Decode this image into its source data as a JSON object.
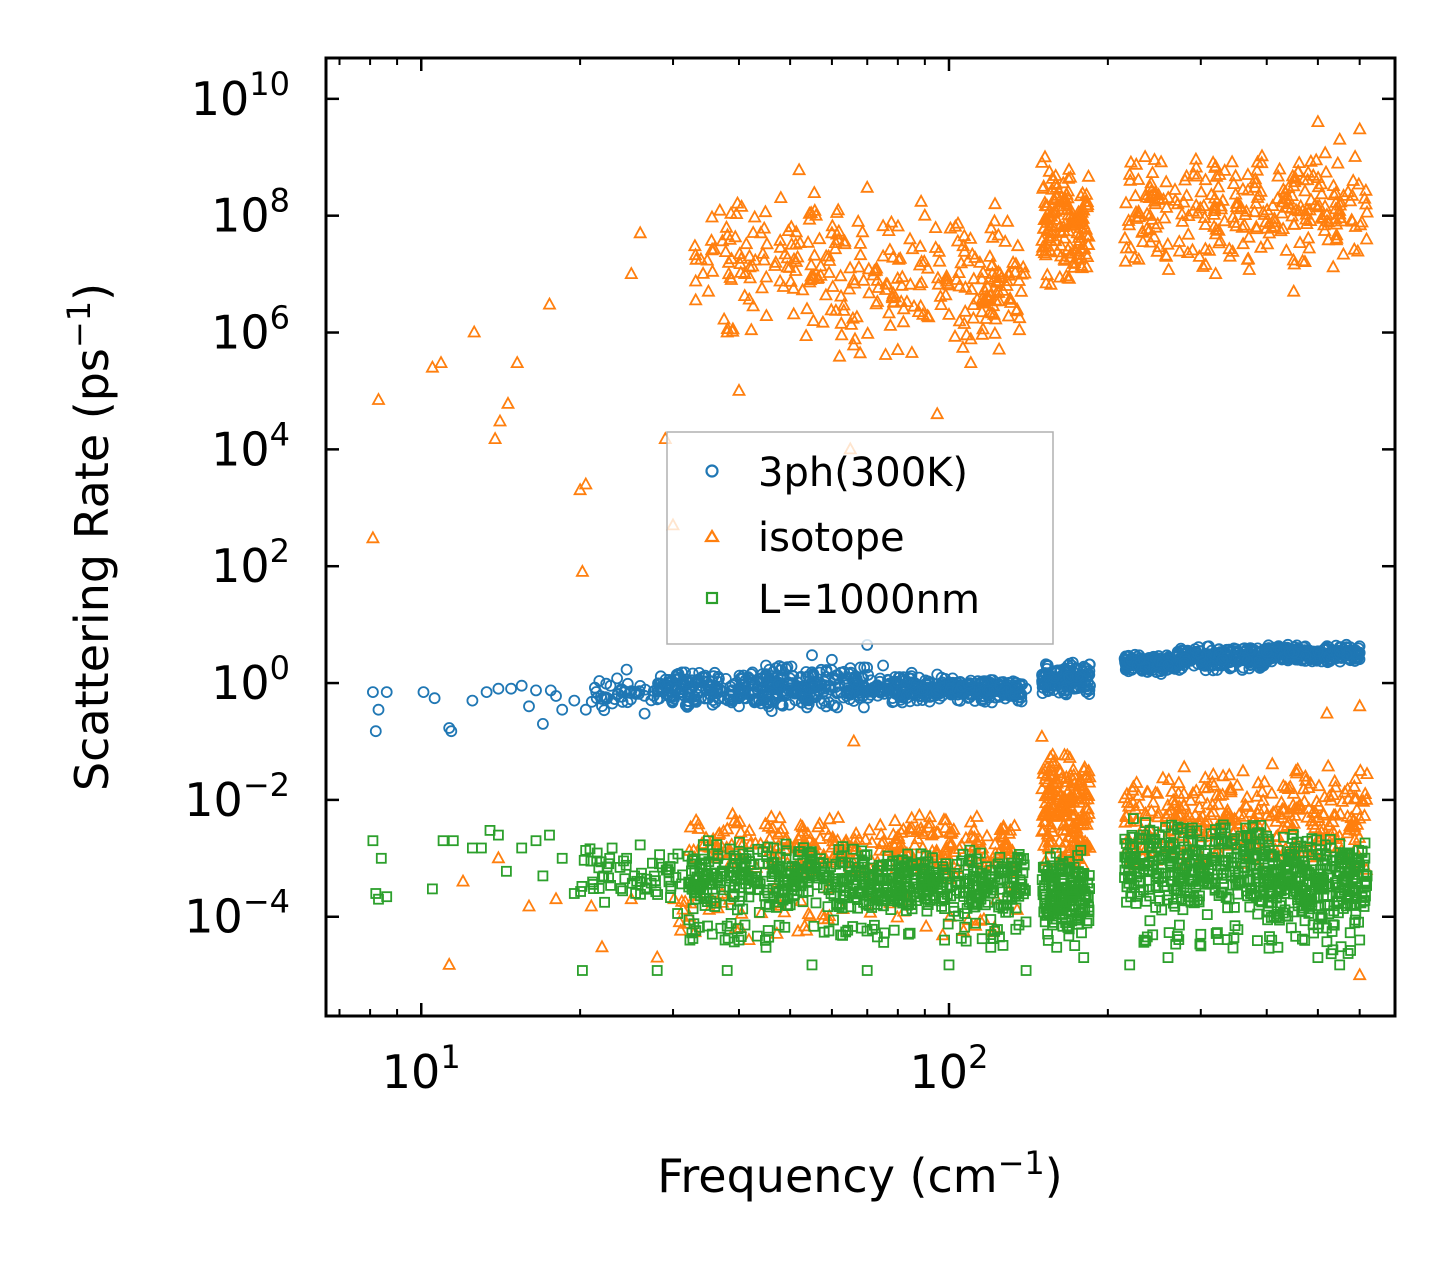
{
  "chart_data": {
    "type": "scatter",
    "title": "",
    "xlabel": "Frequency (cm",
    "xlabel_sup": "−1",
    "xlabel_end": ")",
    "ylabel": "Scattering Rate (ps",
    "ylabel_sup": "−1",
    "ylabel_end": ")",
    "xscale": "log",
    "yscale": "log",
    "xlim": [
      6.6,
      700
    ],
    "ylim": [
      2e-06,
      50000000000.0
    ],
    "x_ticks": [
      {
        "value": 10,
        "base": "10",
        "exp": "1"
      },
      {
        "value": 100,
        "base": "10",
        "exp": "2"
      }
    ],
    "y_ticks": [
      {
        "value": 10000000000.0,
        "base": "10",
        "exp": "10"
      },
      {
        "value": 100000000.0,
        "base": "10",
        "exp": "8"
      },
      {
        "value": 1000000.0,
        "base": "10",
        "exp": "6"
      },
      {
        "value": 10000.0,
        "base": "10",
        "exp": "4"
      },
      {
        "value": 100.0,
        "base": "10",
        "exp": "2"
      },
      {
        "value": 1,
        "base": "10",
        "exp": "0"
      },
      {
        "value": 0.01,
        "base": "10",
        "exp": "−2"
      },
      {
        "value": 0.0001,
        "base": "10",
        "exp": "−4"
      }
    ],
    "legend_position": "center",
    "series": [
      {
        "name": "3ph(300K)",
        "marker": "circle",
        "color": "#1f77b4",
        "points": [
          [
            8.1,
            0.7
          ],
          [
            8.2,
            0.15
          ],
          [
            8.3,
            0.35
          ],
          [
            8.6,
            0.7
          ],
          [
            10.1,
            0.7
          ],
          [
            10.6,
            0.55
          ],
          [
            11.3,
            0.17
          ],
          [
            11.4,
            0.15
          ],
          [
            12.5,
            0.5
          ],
          [
            13.3,
            0.7
          ],
          [
            14.0,
            0.8
          ],
          [
            14.8,
            0.8
          ],
          [
            15.5,
            0.9
          ],
          [
            16.0,
            0.4
          ],
          [
            16.5,
            0.75
          ],
          [
            17.0,
            0.2
          ],
          [
            17.6,
            0.75
          ],
          [
            18.0,
            0.6
          ],
          [
            18.5,
            0.35
          ],
          [
            19.5,
            0.5
          ],
          [
            20.5,
            0.35
          ],
          [
            21.5,
            0.55
          ],
          [
            22.5,
            0.55
          ],
          [
            23.5,
            1.2
          ],
          [
            24.5,
            1.7
          ],
          [
            25.5,
            0.65
          ],
          [
            26.5,
            0.3
          ],
          [
            28.0,
            0.8
          ],
          [
            30.0,
            0.6
          ],
          [
            33.0,
            0.5
          ],
          [
            36.0,
            1.5
          ],
          [
            40.0,
            0.4
          ],
          [
            45.0,
            2.0
          ],
          [
            50.0,
            1.2
          ],
          [
            55.0,
            3.0
          ],
          [
            60.0,
            2.5
          ],
          [
            65.0,
            1.8
          ],
          [
            70.0,
            4.5
          ],
          [
            75.0,
            2.0
          ],
          [
            85.0,
            1.5
          ],
          [
            95.0,
            1.4
          ],
          [
            110.0,
            1.1
          ],
          [
            125.0,
            0.9
          ],
          [
            140.0,
            0.8
          ],
          [
            160.0,
            1.6
          ],
          [
            175.0,
            1.3
          ],
          [
            185.0,
            0.9
          ],
          [
            230.0,
            2.5
          ],
          [
            260.0,
            2.0
          ],
          [
            300.0,
            3.0
          ],
          [
            350.0,
            3.5
          ],
          [
            400.0,
            3.4
          ],
          [
            450.0,
            3.3
          ],
          [
            500.0,
            3.5
          ],
          [
            550.0,
            3.6
          ],
          [
            600.0,
            3.3
          ]
        ],
        "bands": [
          {
            "x": [
              21,
              28
            ],
            "y": [
              0.3,
              1.2
            ],
            "n": 40
          },
          {
            "x": [
              28,
              40
            ],
            "y": [
              0.35,
              1.8
            ],
            "n": 140
          },
          {
            "x": [
              40,
              70
            ],
            "y": [
              0.3,
              2.2
            ],
            "n": 260
          },
          {
            "x": [
              70,
              100
            ],
            "y": [
              0.45,
              1.5
            ],
            "n": 160
          },
          {
            "x": [
              100,
              138
            ],
            "y": [
              0.45,
              1.3
            ],
            "n": 170
          },
          {
            "x": [
              150,
              185
            ],
            "y": [
              0.6,
              2.3
            ],
            "n": 160
          },
          {
            "x": [
              215,
              270
            ],
            "y": [
              1.4,
              3.2
            ],
            "n": 150
          },
          {
            "x": [
              270,
              400
            ],
            "y": [
              1.6,
              4.5
            ],
            "n": 220
          },
          {
            "x": [
              400,
              600
            ],
            "y": [
              2.2,
              4.6
            ],
            "n": 240
          }
        ]
      },
      {
        "name": "isotope",
        "marker": "triangle",
        "color": "#ff7f0e",
        "points": [
          [
            8.1,
            300
          ],
          [
            8.3,
            70000.0
          ],
          [
            10.5,
            250000.0
          ],
          [
            10.9,
            300000.0
          ],
          [
            12.6,
            1000000.0
          ],
          [
            13.8,
            15000.0
          ],
          [
            14.1,
            30000.0
          ],
          [
            14.6,
            60000.0
          ],
          [
            15.2,
            300000.0
          ],
          [
            17.5,
            3000000.0
          ],
          [
            20.0,
            2000.0
          ],
          [
            20.5,
            2500.0
          ],
          [
            20.2,
            80
          ],
          [
            25.0,
            10000000.0
          ],
          [
            26.0,
            50000000.0
          ],
          [
            29.0,
            15000.0
          ],
          [
            30.0,
            500
          ],
          [
            33.0,
            30000000.0
          ],
          [
            35.0,
            5000000.0
          ],
          [
            38.0,
            1000000.0
          ],
          [
            40.0,
            100000.0
          ],
          [
            44.0,
            50000000.0
          ],
          [
            48.0,
            200000000.0
          ],
          [
            52.0,
            600000000.0
          ],
          [
            56.0,
            100000000.0
          ],
          [
            60.0,
            50000000.0
          ],
          [
            65.0,
            10000.0
          ],
          [
            70.0,
            300000000.0
          ],
          [
            75.0,
            20000000.0
          ],
          [
            80.0,
            500000.0
          ],
          [
            90.0,
            100000000.0
          ],
          [
            95.0,
            40000.0
          ],
          [
            100.0,
            2000000.0
          ],
          [
            110.0,
            300000.0
          ],
          [
            125.0,
            10000000.0
          ],
          [
            135.0,
            30000000.0
          ],
          [
            150.0,
            800000000.0
          ],
          [
            152.0,
            1000000000.0
          ],
          [
            160.0,
            300000000.0
          ],
          [
            170.0,
            100000000.0
          ],
          [
            175.0,
            50000000.0
          ],
          [
            220.0,
            500000000.0
          ],
          [
            240.0,
            200000000.0
          ],
          [
            280.0,
            400000000.0
          ],
          [
            320.0,
            10000000.0
          ],
          [
            380.0,
            300000000.0
          ],
          [
            450.0,
            5000000.0
          ],
          [
            500.0,
            4000000000.0
          ],
          [
            550.0,
            2000000000.0
          ],
          [
            600.0,
            3000000000.0
          ],
          [
            16.0,
            0.00015
          ],
          [
            18.0,
            0.0002
          ],
          [
            21.0,
            0.00015
          ],
          [
            22.0,
            3e-05
          ],
          [
            25.0,
            0.0002
          ],
          [
            28.0,
            2e-05
          ],
          [
            11.3,
            1.5e-05
          ],
          [
            12.0,
            0.0004
          ],
          [
            14.0,
            0.001
          ],
          [
            66.0,
            0.1
          ],
          [
            150.0,
            0.12
          ],
          [
            520.0,
            0.3
          ],
          [
            600.0,
            0.4
          ],
          [
            600.0,
            1e-05
          ]
        ],
        "bands": [
          {
            "x": [
              33,
              62
            ],
            "y": [
              500000.0,
              500000000.0
            ],
            "n": 120
          },
          {
            "x": [
              62,
              130
            ],
            "y": [
              300000.0,
              200000000.0
            ],
            "n": 150
          },
          {
            "x": [
              115,
              140
            ],
            "y": [
              1000000.0,
              20000000.0
            ],
            "n": 40
          },
          {
            "x": [
              150,
              185
            ],
            "y": [
              5000000.0,
              1000000000.0
            ],
            "n": 140
          },
          {
            "x": [
              215,
              620
            ],
            "y": [
              10000000.0,
              1500000000.0
            ],
            "n": 280
          },
          {
            "x": [
              32,
              135
            ],
            "y": [
              0.0004,
              0.006
            ],
            "n": 280
          },
          {
            "x": [
              150,
              185
            ],
            "y": [
              0.0005,
              0.08
            ],
            "n": 200
          },
          {
            "x": [
              215,
              620
            ],
            "y": [
              0.0005,
              0.05
            ],
            "n": 340
          },
          {
            "x": [
              30,
              135
            ],
            "y": [
              3e-05,
              0.0004
            ],
            "n": 60
          }
        ]
      },
      {
        "name": "L=1000nm",
        "marker": "square",
        "color": "#2ca02c",
        "points": [
          [
            8.1,
            0.002
          ],
          [
            8.2,
            0.00025
          ],
          [
            8.3,
            0.0002
          ],
          [
            8.4,
            0.001
          ],
          [
            8.6,
            0.00022
          ],
          [
            10.5,
            0.0003
          ],
          [
            11.0,
            0.002
          ],
          [
            11.5,
            0.002
          ],
          [
            12.5,
            0.0015
          ],
          [
            13.0,
            0.0015
          ],
          [
            13.5,
            0.003
          ],
          [
            14.0,
            0.0025
          ],
          [
            14.5,
            0.0006
          ],
          [
            15.5,
            0.0015
          ],
          [
            16.5,
            0.002
          ],
          [
            17.0,
            0.0005
          ],
          [
            17.5,
            0.0025
          ],
          [
            18.5,
            0.001
          ],
          [
            19.5,
            0.00025
          ],
          [
            20.2,
            1.2e-05
          ],
          [
            21.5,
            0.0009
          ],
          [
            23.0,
            0.0015
          ],
          [
            24.5,
            0.001
          ],
          [
            26.0,
            0.0004
          ],
          [
            28.0,
            1.2e-05
          ],
          [
            30.0,
            0.001
          ],
          [
            35.0,
            0.002
          ],
          [
            38.0,
            1.2e-05
          ],
          [
            40.0,
            4e-05
          ],
          [
            45.0,
            3e-05
          ],
          [
            55.0,
            1.5e-05
          ],
          [
            70.0,
            1.2e-05
          ],
          [
            100.0,
            1.5e-05
          ],
          [
            120.0,
            3e-05
          ],
          [
            140.0,
            1.2e-05
          ],
          [
            160.0,
            3e-05
          ],
          [
            180.0,
            2e-05
          ],
          [
            220.0,
            1.5e-05
          ],
          [
            260.0,
            2e-05
          ],
          [
            300.0,
            5e-05
          ],
          [
            420.0,
            3e-05
          ],
          [
            500.0,
            2e-05
          ],
          [
            550.0,
            1.5e-05
          ],
          [
            600.0,
            4e-05
          ]
        ],
        "bands": [
          {
            "x": [
              20,
              32
            ],
            "y": [
              0.0001,
              0.002
            ],
            "n": 60
          },
          {
            "x": [
              32,
              70
            ],
            "y": [
              0.0001,
              0.002
            ],
            "n": 320
          },
          {
            "x": [
              70,
              140
            ],
            "y": [
              0.0001,
              0.0015
            ],
            "n": 320
          },
          {
            "x": [
              150,
              185
            ],
            "y": [
              3e-05,
              0.0015
            ],
            "n": 180
          },
          {
            "x": [
              215,
              400
            ],
            "y": [
              0.0001,
              0.005
            ],
            "n": 340
          },
          {
            "x": [
              400,
              620
            ],
            "y": [
              5e-05,
              0.003
            ],
            "n": 300
          },
          {
            "x": [
              32,
              140
            ],
            "y": [
              3e-05,
              0.0001
            ],
            "n": 60
          },
          {
            "x": [
              215,
              620
            ],
            "y": [
              2e-05,
              0.0001
            ],
            "n": 40
          }
        ]
      }
    ]
  }
}
